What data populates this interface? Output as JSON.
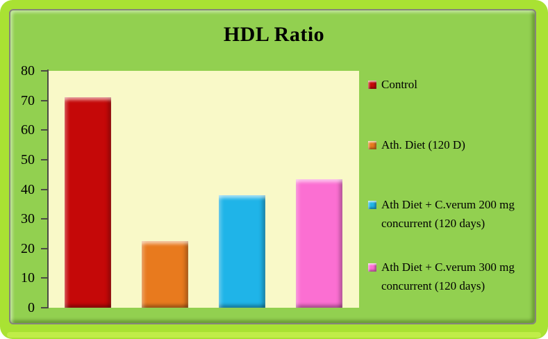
{
  "chart_data": {
    "type": "bar",
    "title": "HDL Ratio",
    "categories": [
      "Control",
      "Ath. Diet (120 D)",
      "Ath Diet + C.verum 200 mg concurrent (120 days)",
      "Ath Diet + C.verum 300 mg concurrent (120 days)"
    ],
    "values": [
      71,
      22.5,
      38,
      43.5
    ],
    "colors": [
      "#c50808",
      "#e87a1e",
      "#1fb4e8",
      "#fb6fd2"
    ],
    "xlabel": "",
    "ylabel": "",
    "ylim": [
      0,
      80
    ],
    "yticks": [
      0,
      10,
      20,
      30,
      40,
      50,
      60,
      70,
      80
    ],
    "grid": false,
    "legend_position": "right",
    "plot_background": "#f9f9c8",
    "chart_background": "#92d050",
    "frame_color": "#a9e233"
  },
  "legend": {
    "items": [
      {
        "label": "Control",
        "color": "#c50808"
      },
      {
        "label": "Ath. Diet (120 D)",
        "color": "#e87a1e"
      },
      {
        "label": "Ath Diet + C.verum 200 mg concurrent (120 days)",
        "color": "#1fb4e8"
      },
      {
        "label": "Ath Diet + C.verum 300 mg concurrent (120 days)",
        "color": "#fb6fd2"
      }
    ]
  }
}
